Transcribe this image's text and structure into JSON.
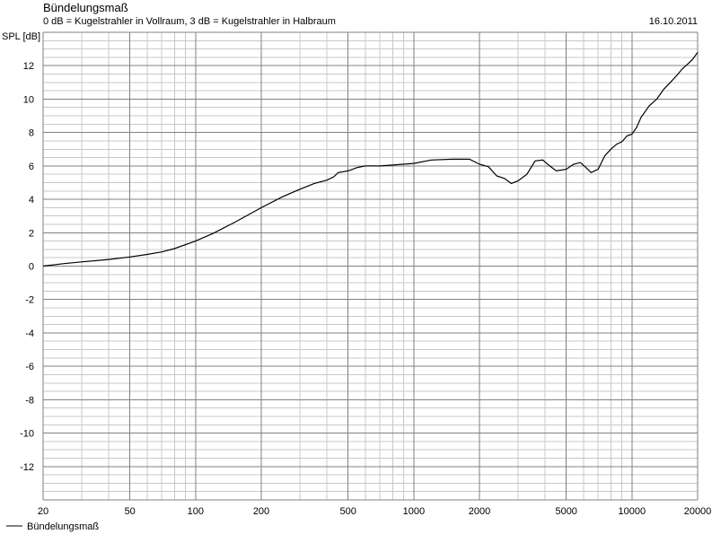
{
  "header": {
    "title": "Bündelungsmaß",
    "subtitle": "0 dB = Kugelstrahler in Vollraum, 3 dB = Kugelstrahler in Halbraum",
    "date": "16.10.2011"
  },
  "legend": {
    "label": "Bündelungsmaß"
  },
  "colors": {
    "grid_major": "#808080",
    "grid_minor": "#c8c8c8",
    "curve": "#000000",
    "background": "#ffffff"
  },
  "chart_data": {
    "type": "line",
    "title": "Bündelungsmaß",
    "subtitle": "0 dB = Kugelstrahler in Vollraum, 3 dB = Kugelstrahler in Halbraum",
    "ylabel": "SPL [dB]",
    "xlabel": "",
    "xscale": "log",
    "xlim": [
      20,
      20000
    ],
    "ylim": [
      -14,
      14
    ],
    "grid": true,
    "legend_position": "bottom-left",
    "x_ticks": [
      {
        "value": 20,
        "label": "20"
      },
      {
        "value": 50,
        "label": "50"
      },
      {
        "value": 100,
        "label": "100"
      },
      {
        "value": 200,
        "label": "200"
      },
      {
        "value": 500,
        "label": "500"
      },
      {
        "value": 1000,
        "label": "1000"
      },
      {
        "value": 2000,
        "label": "2000"
      },
      {
        "value": 5000,
        "label": "5000"
      },
      {
        "value": 10000,
        "label": "10000"
      },
      {
        "value": 20000,
        "label": "20000"
      }
    ],
    "y_ticks": [
      {
        "value": 12,
        "label": "12"
      },
      {
        "value": 10,
        "label": "10"
      },
      {
        "value": 8,
        "label": "8"
      },
      {
        "value": 6,
        "label": "6"
      },
      {
        "value": 4,
        "label": "4"
      },
      {
        "value": 2,
        "label": "2"
      },
      {
        "value": 0,
        "label": "0"
      },
      {
        "value": -2,
        "label": "-2"
      },
      {
        "value": -4,
        "label": "-4"
      },
      {
        "value": -6,
        "label": "-6"
      },
      {
        "value": -8,
        "label": "-8"
      },
      {
        "value": -10,
        "label": "-10"
      },
      {
        "value": -12,
        "label": "-12"
      }
    ],
    "series": [
      {
        "name": "Bündelungsmaß",
        "x": [
          20,
          25,
          30,
          40,
          50,
          60,
          70,
          80,
          100,
          120,
          150,
          200,
          250,
          300,
          350,
          400,
          430,
          450,
          500,
          550,
          600,
          700,
          800,
          1000,
          1200,
          1500,
          1800,
          2000,
          2200,
          2400,
          2600,
          2800,
          3000,
          3300,
          3600,
          3900,
          4200,
          4500,
          5000,
          5400,
          5800,
          6100,
          6500,
          7000,
          7500,
          8000,
          8500,
          9000,
          9500,
          10000,
          10500,
          11000,
          12000,
          13000,
          14000,
          15000,
          16000,
          17000,
          18000,
          19000,
          20000
        ],
        "y": [
          0.0,
          0.15,
          0.25,
          0.4,
          0.55,
          0.7,
          0.85,
          1.05,
          1.5,
          1.95,
          2.6,
          3.5,
          4.15,
          4.6,
          4.95,
          5.15,
          5.35,
          5.6,
          5.7,
          5.9,
          6.0,
          6.0,
          6.05,
          6.15,
          6.35,
          6.4,
          6.4,
          6.1,
          5.95,
          5.4,
          5.25,
          4.95,
          5.1,
          5.5,
          6.3,
          6.35,
          6.0,
          5.7,
          5.8,
          6.1,
          6.2,
          5.95,
          5.6,
          5.8,
          6.6,
          7.0,
          7.3,
          7.45,
          7.8,
          7.9,
          8.3,
          8.9,
          9.6,
          10.0,
          10.6,
          11.0,
          11.4,
          11.8,
          12.1,
          12.4,
          12.8
        ]
      }
    ]
  }
}
